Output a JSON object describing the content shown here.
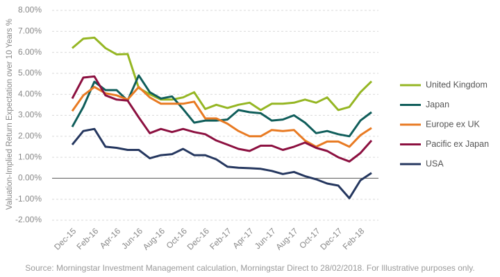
{
  "chart_data": {
    "type": "line",
    "ylabel": "Valuation-Implied Return Expectation over 10 Years %",
    "source": "Source: Morningstar Investment Management calculation, Morningstar Direct to 28/02/2018. For Illustrative purposes only.",
    "categories": [
      "Dec-15",
      null,
      "Feb-16",
      null,
      "Apr-16",
      null,
      "Jun-16",
      null,
      "Aug-16",
      null,
      "Oct-16",
      null,
      "Dec-16",
      null,
      "Feb-17",
      null,
      "Apr-17",
      null,
      "Jun-17",
      null,
      "Aug-17",
      null,
      "Oct-17",
      null,
      "Dec-17",
      null,
      "Feb-18",
      null
    ],
    "ylim": [
      -2,
      8
    ],
    "yticks": [
      {
        "value": -2,
        "label": "-2.00%"
      },
      {
        "value": -1,
        "label": "-1.00%"
      },
      {
        "value": 0,
        "label": "0.00%"
      },
      {
        "value": 1,
        "label": "1.00%"
      },
      {
        "value": 2,
        "label": "2.00%"
      },
      {
        "value": 3,
        "label": "3.00%"
      },
      {
        "value": 4,
        "label": "4.00%"
      },
      {
        "value": 5,
        "label": "5.00%"
      },
      {
        "value": 6,
        "label": "6.00%"
      },
      {
        "value": 7,
        "label": "7.00%"
      },
      {
        "value": 8,
        "label": "8.00%"
      }
    ],
    "grid": true,
    "legend": "right",
    "series": [
      {
        "name": "United Kingdom",
        "color": "#95b623",
        "values": [
          6.2,
          6.65,
          6.7,
          6.2,
          5.9,
          5.92,
          4.3,
          4.0,
          3.75,
          3.75,
          3.85,
          4.1,
          3.3,
          3.5,
          3.35,
          3.5,
          3.6,
          3.25,
          3.55,
          3.55,
          3.6,
          3.75,
          3.6,
          3.85,
          3.25,
          3.4,
          4.1,
          4.62
        ]
      },
      {
        "name": "Japan",
        "color": "#0f5d5a",
        "values": [
          2.45,
          3.4,
          4.6,
          4.2,
          4.2,
          3.7,
          4.9,
          4.1,
          3.8,
          3.9,
          3.3,
          2.65,
          2.75,
          2.75,
          2.8,
          3.25,
          3.15,
          3.1,
          2.75,
          2.8,
          3.0,
          2.65,
          2.15,
          2.25,
          2.1,
          2.0,
          2.75,
          3.15
        ]
      },
      {
        "name": "Europe ex UK",
        "color": "#e87a22",
        "values": [
          3.2,
          3.95,
          4.35,
          4.05,
          3.95,
          3.75,
          4.35,
          3.85,
          3.55,
          3.55,
          3.55,
          3.65,
          2.85,
          2.85,
          2.6,
          2.25,
          2.0,
          2.0,
          2.3,
          2.25,
          2.3,
          1.8,
          1.5,
          1.75,
          1.75,
          1.5,
          2.05,
          2.4
        ]
      },
      {
        "name": "Pacific ex Japan",
        "color": "#8c1040",
        "values": [
          3.8,
          4.8,
          4.85,
          3.95,
          3.75,
          3.7,
          2.9,
          2.15,
          2.35,
          2.2,
          2.35,
          2.2,
          2.1,
          1.8,
          1.6,
          1.4,
          1.3,
          1.55,
          1.55,
          1.35,
          1.5,
          1.7,
          1.45,
          1.3,
          1.0,
          0.8,
          1.2,
          1.8
        ]
      },
      {
        "name": "USA",
        "color": "#25375f",
        "values": [
          1.6,
          2.25,
          2.35,
          1.5,
          1.45,
          1.35,
          1.35,
          0.95,
          1.1,
          1.15,
          1.4,
          1.1,
          1.1,
          0.9,
          0.55,
          0.5,
          0.48,
          0.45,
          0.35,
          0.2,
          0.3,
          0.1,
          -0.05,
          -0.25,
          -0.35,
          -0.95,
          -0.1,
          0.25
        ]
      }
    ]
  }
}
